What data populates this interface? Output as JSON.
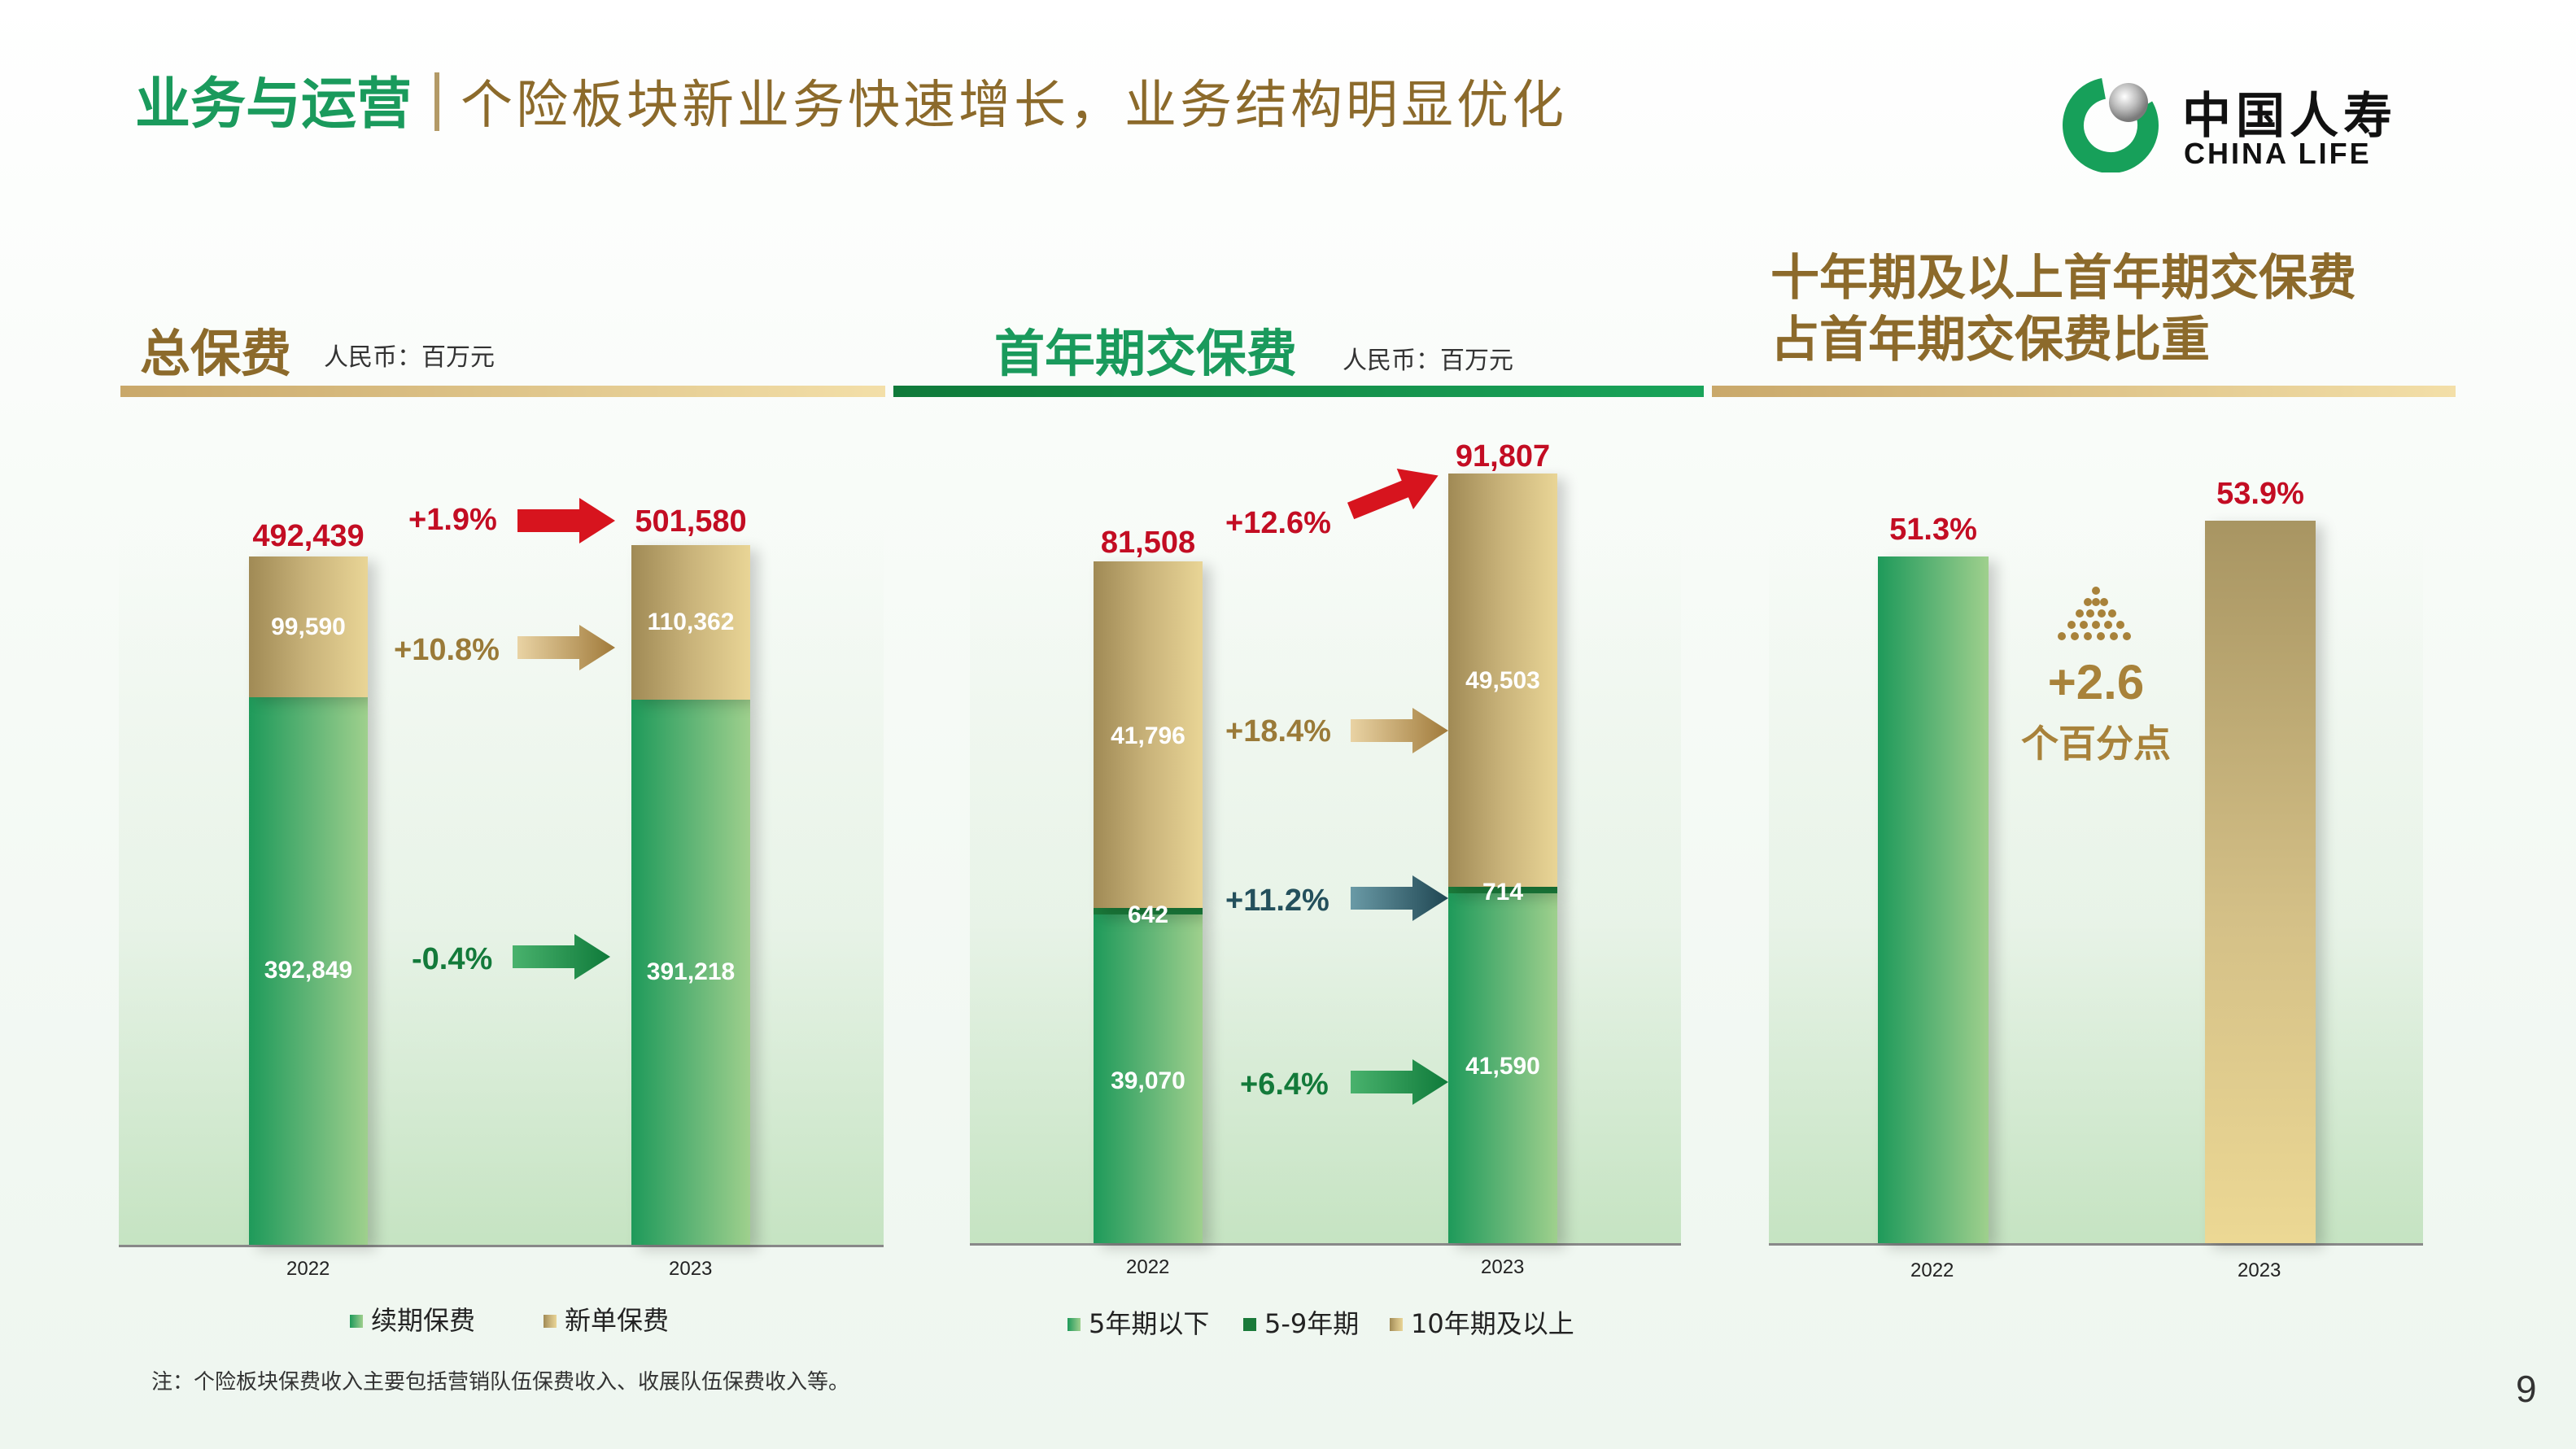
{
  "header": {
    "category": "业务与运营",
    "subtitle": "个险板块新业务快速增长，业务结构明显优化"
  },
  "logo": {
    "cn": "中国人寿",
    "en": "CHINA LIFE",
    "icon": "china-life-logo-icon"
  },
  "colors": {
    "green": "#1a9a5c",
    "gold": "#8c6a2b",
    "red": "#c30d23",
    "dark_green": "#1a7a3a",
    "teal": "#24505c"
  },
  "panels": {
    "total_premium": {
      "title": "总保费",
      "unit": "人民币：百万元"
    },
    "first_year_regular": {
      "title": "首年期交保费",
      "unit": "人民币：百万元"
    },
    "ten_year_share": {
      "title_line1": "十年期及以上首年期交保费",
      "title_line2": "占首年期交保费比重"
    }
  },
  "chart_data": [
    {
      "type": "bar",
      "stacked": true,
      "title": "总保费",
      "categories": [
        "2022",
        "2023"
      ],
      "series": [
        {
          "name": "续期保费",
          "values": [
            392849,
            391218
          ],
          "labels": [
            "392,849",
            "391,218"
          ]
        },
        {
          "name": "新单保费",
          "values": [
            99590,
            110362
          ],
          "labels": [
            "99,590",
            "110,362"
          ]
        }
      ],
      "totals": [
        "492,439",
        "501,580"
      ],
      "ylim": [
        0,
        500000
      ],
      "changes": {
        "total": "+1.9%",
        "series": [
          "-0.4%",
          "+10.8%"
        ]
      },
      "legend_position": "bottom"
    },
    {
      "type": "bar",
      "stacked": true,
      "title": "首年期交保费",
      "categories": [
        "2022",
        "2023"
      ],
      "series": [
        {
          "name": "5年期以下",
          "values": [
            39070,
            41590
          ],
          "labels": [
            "39,070",
            "41,590"
          ]
        },
        {
          "name": "5-9年期",
          "values": [
            642,
            714
          ],
          "labels": [
            "642",
            "714"
          ]
        },
        {
          "name": "10年期及以上",
          "values": [
            41796,
            49503
          ],
          "labels": [
            "41,796",
            "49,503"
          ]
        }
      ],
      "totals": [
        "81,508",
        "91,807"
      ],
      "ylim": [
        0,
        92000
      ],
      "changes": {
        "total": "+12.6%",
        "series": [
          "+6.4%",
          "+11.2%",
          "+18.4%"
        ]
      },
      "legend_position": "bottom"
    },
    {
      "type": "bar",
      "title": "十年期及以上首年期交保费占首年期交保费比重",
      "categories": [
        "2022",
        "2023"
      ],
      "values": [
        51.3,
        53.9
      ],
      "labels": [
        "51.3%",
        "53.9%"
      ],
      "ylim": [
        0,
        53.9
      ],
      "annotation": {
        "value": "+2.6",
        "unit": "个百分点"
      }
    }
  ],
  "footnote": "注：个险板块保费收入主要包括营销队伍保费收入、收展队伍保费收入等。",
  "page_number": "9"
}
